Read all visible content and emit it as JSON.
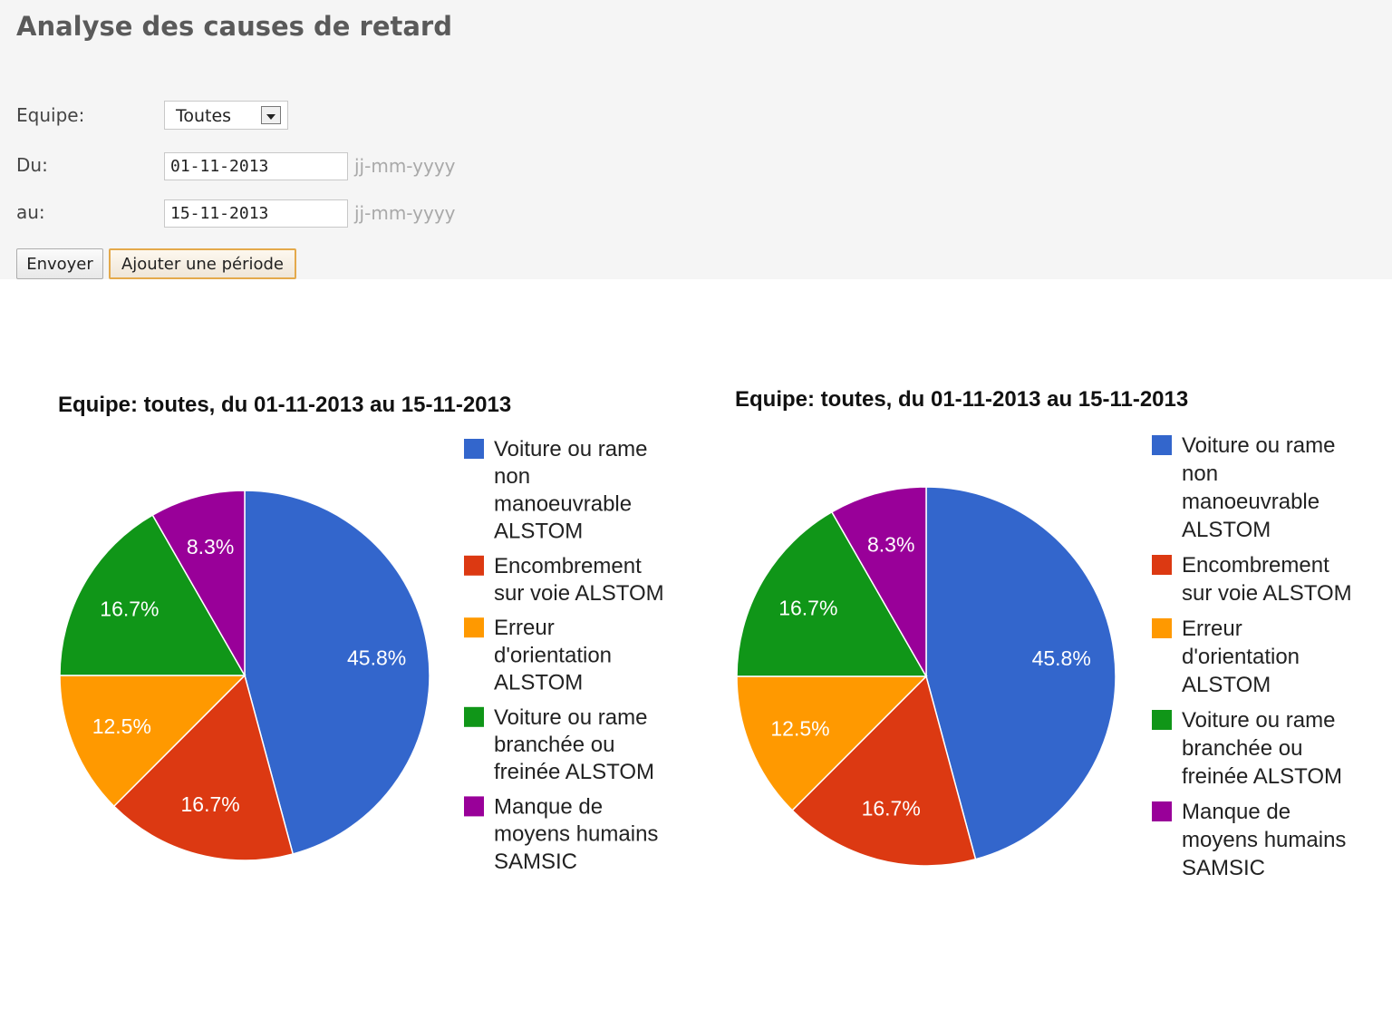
{
  "page": {
    "title": "Analyse des causes de retard"
  },
  "form": {
    "team_label": "Equipe:",
    "team_value": "Toutes",
    "from_label": "Du:",
    "from_value": "01-11-2013",
    "from_hint": "jj-mm-yyyy",
    "to_label": "au:",
    "to_value": "15-11-2013",
    "to_hint": "jj-mm-yyyy",
    "send_label": "Envoyer",
    "add_period_label": "Ajouter une période"
  },
  "chart_data": [
    {
      "type": "pie",
      "title": "Equipe: toutes, du 01-11-2013 au 15-11-2013",
      "legend_position": "right",
      "slices": [
        {
          "label": [
            "Voiture ou rame",
            "non",
            "manoeuvrable",
            "ALSTOM"
          ],
          "value": 45.8,
          "display": "45.8%",
          "color": "#3366cc"
        },
        {
          "label": [
            "Encombrement",
            "sur voie ALSTOM"
          ],
          "value": 16.7,
          "display": "16.7%",
          "color": "#dc3912"
        },
        {
          "label": [
            "Erreur",
            "d'orientation",
            "ALSTOM"
          ],
          "value": 12.5,
          "display": "12.5%",
          "color": "#ff9900"
        },
        {
          "label": [
            "Voiture ou rame",
            "branchée ou",
            "freinée ALSTOM"
          ],
          "value": 16.7,
          "display": "16.7%",
          "color": "#109618"
        },
        {
          "label": [
            "Manque de",
            "moyens humains",
            "SAMSIC"
          ],
          "value": 8.3,
          "display": "8.3%",
          "color": "#990099"
        }
      ]
    },
    {
      "type": "pie",
      "title": "Equipe: toutes, du 01-11-2013 au 15-11-2013",
      "legend_position": "right",
      "slices": [
        {
          "label": [
            "Voiture ou rame",
            "non",
            "manoeuvrable",
            "ALSTOM"
          ],
          "value": 45.8,
          "display": "45.8%",
          "color": "#3366cc"
        },
        {
          "label": [
            "Encombrement",
            "sur voie ALSTOM"
          ],
          "value": 16.7,
          "display": "16.7%",
          "color": "#dc3912"
        },
        {
          "label": [
            "Erreur",
            "d'orientation",
            "ALSTOM"
          ],
          "value": 12.5,
          "display": "12.5%",
          "color": "#ff9900"
        },
        {
          "label": [
            "Voiture ou rame",
            "branchée ou",
            "freinée ALSTOM"
          ],
          "value": 16.7,
          "display": "16.7%",
          "color": "#109618"
        },
        {
          "label": [
            "Manque de",
            "moyens humains",
            "SAMSIC"
          ],
          "value": 8.3,
          "display": "8.3%",
          "color": "#990099"
        }
      ]
    }
  ]
}
